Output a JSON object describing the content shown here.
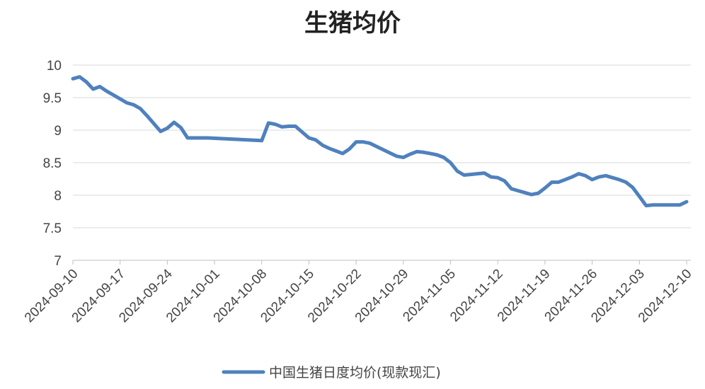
{
  "chart_data": {
    "type": "line",
    "title": "生猪均价",
    "xlabel": "",
    "ylabel": "",
    "ylim": [
      7,
      10
    ],
    "yticks": [
      "10",
      "9.5",
      "9",
      "8.5",
      "8",
      "7.5",
      "7"
    ],
    "xticks": [
      "2024-09-10",
      "2024-09-17",
      "2024-09-24",
      "2024-10-01",
      "2024-10-08",
      "2024-10-15",
      "2024-10-22",
      "2024-10-29",
      "2024-11-05",
      "2024-11-12",
      "2024-11-19",
      "2024-11-26",
      "2024-12-03",
      "2024-12-10"
    ],
    "grid": true,
    "legend_position": "bottom",
    "color": "#4f81bd",
    "series": [
      {
        "name": "中国生猪日度均价(现款现汇)",
        "x": [
          "2024-09-10",
          "2024-09-11",
          "2024-09-12",
          "2024-09-13",
          "2024-09-14",
          "2024-09-15",
          "2024-09-16",
          "2024-09-17",
          "2024-09-18",
          "2024-09-19",
          "2024-09-20",
          "2024-09-21",
          "2024-09-22",
          "2024-09-23",
          "2024-09-24",
          "2024-09-25",
          "2024-09-26",
          "2024-09-27",
          "2024-09-28",
          "2024-09-29",
          "2024-09-30",
          "2024-10-08",
          "2024-10-09",
          "2024-10-10",
          "2024-10-11",
          "2024-10-12",
          "2024-10-13",
          "2024-10-14",
          "2024-10-15",
          "2024-10-16",
          "2024-10-17",
          "2024-10-18",
          "2024-10-19",
          "2024-10-20",
          "2024-10-21",
          "2024-10-22",
          "2024-10-23",
          "2024-10-24",
          "2024-10-25",
          "2024-10-26",
          "2024-10-27",
          "2024-10-28",
          "2024-10-29",
          "2024-10-30",
          "2024-10-31",
          "2024-11-01",
          "2024-11-02",
          "2024-11-03",
          "2024-11-04",
          "2024-11-05",
          "2024-11-06",
          "2024-11-07",
          "2024-11-08",
          "2024-11-09",
          "2024-11-10",
          "2024-11-11",
          "2024-11-12",
          "2024-11-13",
          "2024-11-14",
          "2024-11-15",
          "2024-11-16",
          "2024-11-17",
          "2024-11-18",
          "2024-11-19",
          "2024-11-20",
          "2024-11-21",
          "2024-11-22",
          "2024-11-23",
          "2024-11-24",
          "2024-11-25",
          "2024-11-26",
          "2024-11-27",
          "2024-11-28",
          "2024-11-29",
          "2024-11-30",
          "2024-12-01",
          "2024-12-02",
          "2024-12-03",
          "2024-12-04",
          "2024-12-05",
          "2024-12-06",
          "2024-12-07",
          "2024-12-08",
          "2024-12-09",
          "2024-12-10"
        ],
        "values": [
          9.79,
          9.82,
          9.74,
          9.63,
          9.67,
          9.6,
          9.54,
          9.48,
          9.42,
          9.39,
          9.33,
          9.22,
          9.1,
          8.98,
          9.03,
          9.12,
          9.04,
          8.88,
          8.88,
          8.88,
          8.88,
          8.84,
          9.11,
          9.09,
          9.05,
          9.06,
          9.06,
          8.97,
          8.88,
          8.85,
          8.77,
          8.72,
          8.68,
          8.64,
          8.71,
          8.82,
          8.82,
          8.8,
          8.75,
          8.7,
          8.65,
          8.6,
          8.58,
          8.63,
          8.67,
          8.66,
          8.64,
          8.62,
          8.58,
          8.5,
          8.37,
          8.31,
          8.32,
          8.33,
          8.34,
          8.28,
          8.27,
          8.22,
          8.1,
          8.07,
          8.04,
          8.01,
          8.03,
          8.11,
          8.2,
          8.2,
          8.24,
          8.28,
          8.33,
          8.3,
          8.24,
          8.28,
          8.3,
          8.27,
          8.24,
          8.2,
          8.12,
          7.98,
          7.84,
          7.85,
          7.85,
          7.85,
          7.85,
          7.85,
          7.9
        ]
      }
    ]
  }
}
